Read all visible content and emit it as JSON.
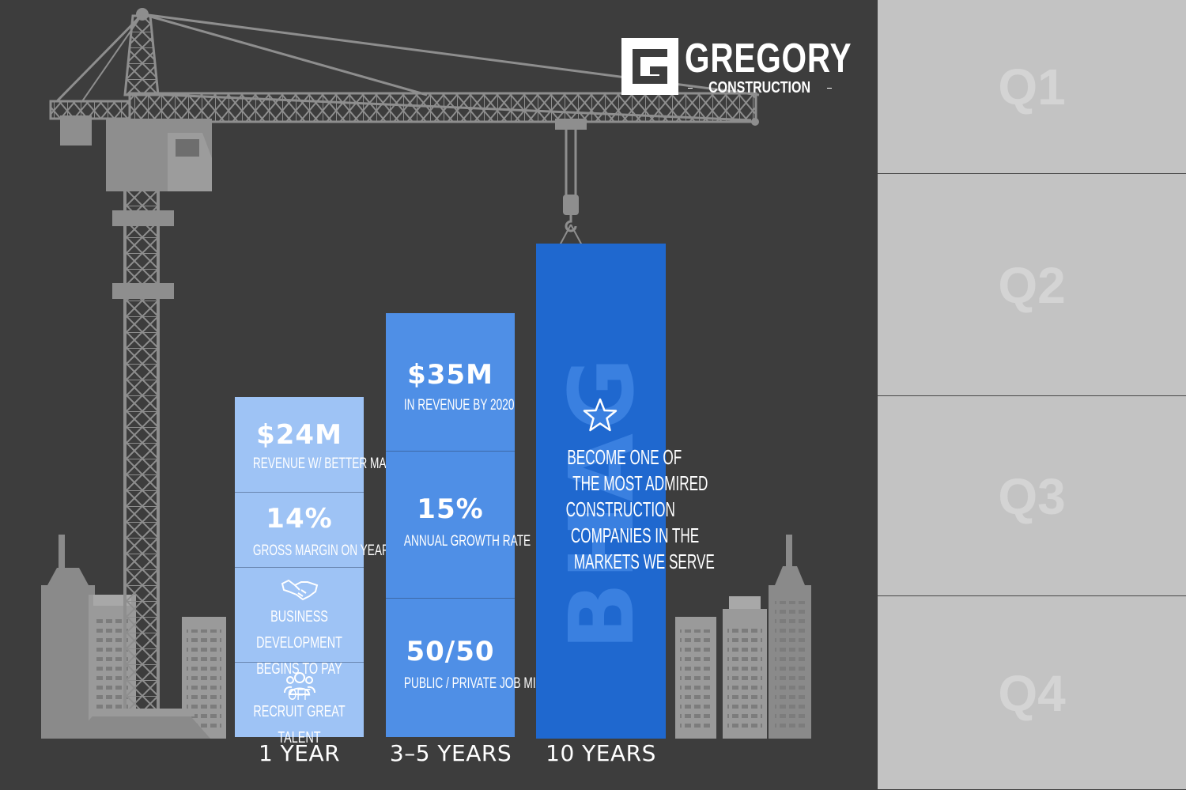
{
  "logo": {
    "name": "GREGORY",
    "sub": "CONSTRUCTION",
    "mark_letter": "G"
  },
  "quarters": [
    "Q1",
    "Q2",
    "Q3",
    "Q4"
  ],
  "columns": {
    "year1": {
      "label": "1 YEAR",
      "items": [
        {
          "value": "$24M",
          "caption": "REVENUE W/ BETTER MARGIN"
        },
        {
          "value": "14%",
          "caption": "GROSS MARGIN ON YEAR"
        },
        {
          "icon": "handshake-icon",
          "caption_line1": "BUSINESS DEVELOPMENT",
          "caption_line2": "BEGINS TO PAY OFF"
        },
        {
          "icon": "people-icon",
          "caption": "RECRUIT GREAT TALENT"
        }
      ]
    },
    "year35": {
      "label": "3–5 YEARS",
      "items": [
        {
          "value": "$35M",
          "caption": "IN REVENUE BY 2020"
        },
        {
          "value": "15%",
          "caption": "ANNUAL GROWTH RATE"
        },
        {
          "value": "50/50",
          "caption": "PUBLIC / PRIVATE JOB MIX"
        }
      ]
    },
    "year10": {
      "label": "10 YEARS",
      "watermark": "BHAG",
      "icon": "star-icon",
      "lines": [
        "BECOME ONE OF",
        "THE MOST ADMIRED",
        "CONSTRUCTION",
        "COMPANIES IN THE",
        "MARKETS WE SERVE"
      ]
    }
  },
  "colors": {
    "background": "#3d3d3d",
    "panel": "#c3c3c3",
    "col1": "#9ec3f5",
    "col2": "#4f8fe6",
    "col3": "#1f68cf",
    "crane": "#8e8e8e"
  }
}
